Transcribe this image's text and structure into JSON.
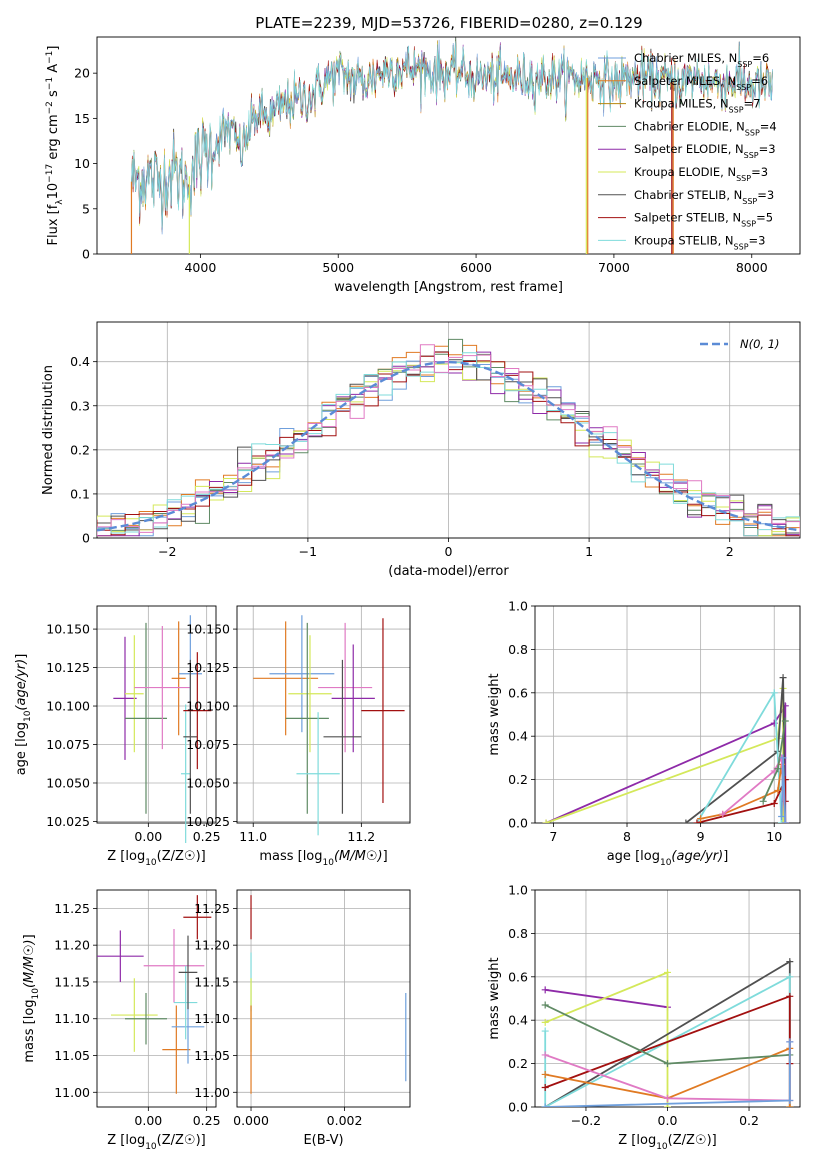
{
  "figure": {
    "title": "PLATE=2239, MJD=53726, FIBERID=0280, z=0.129"
  },
  "colors": {
    "chabrier_miles": "#6f9fdc",
    "salpeter_miles": "#e07a23",
    "kroupa_miles": "#b8860b",
    "chabrier_elodie": "#5f8a64",
    "salpeter_elodie": "#8e2aa8",
    "kroupa_elodie": "#d4e85a",
    "chabrier_stelib": "#505050",
    "salpeter_stelib": "#a21010",
    "kroupa_stelib": "#7fdbdb",
    "pink": "#e07ac4",
    "gaussian": "#5b8bd6",
    "grid": "#b0b0b0"
  },
  "chart_data": [
    {
      "id": "spectrum",
      "type": "line",
      "xlabel": "wavelength [Angstrom, rest frame]",
      "ylabel": "Flux [f_λ10^-17 erg cm^-2 s^-1 A^-1]",
      "xlim": [
        3250,
        8350
      ],
      "ylim": [
        0,
        24
      ],
      "xticks": [
        4000,
        5000,
        6000,
        7000,
        8000
      ],
      "yticks": [
        0,
        5,
        10,
        15,
        20
      ],
      "grid": false,
      "legend_position": "upper-right",
      "legend": [
        {
          "label": "Chabrier MILES, N",
          "sub": "SSP",
          "tail": "=6",
          "color_key": "chabrier_miles"
        },
        {
          "label": "Salpeter MILES, N",
          "sub": "SSP",
          "tail": "=6",
          "color_key": "salpeter_miles"
        },
        {
          "label": "Kroupa MILES, N",
          "sub": "SSP",
          "tail": "=7",
          "color_key": "kroupa_miles"
        },
        {
          "label": "Chabrier ELODIE, N",
          "sub": "SSP",
          "tail": "=4",
          "color_key": "chabrier_elodie"
        },
        {
          "label": "Salpeter ELODIE, N",
          "sub": "SSP",
          "tail": "=3",
          "color_key": "salpeter_elodie"
        },
        {
          "label": "Kroupa ELODIE, N",
          "sub": "SSP",
          "tail": "=3",
          "color_key": "kroupa_elodie"
        },
        {
          "label": "Chabrier STELIB, N",
          "sub": "SSP",
          "tail": "=3",
          "color_key": "chabrier_stelib"
        },
        {
          "label": "Salpeter STELIB, N",
          "sub": "SSP",
          "tail": "=5",
          "color_key": "salpeter_stelib"
        },
        {
          "label": "Kroupa STELIB, N",
          "sub": "SSP",
          "tail": "=3",
          "color_key": "kroupa_stelib"
        }
      ],
      "continuum": {
        "x": [
          3500,
          3600,
          3700,
          3800,
          3900,
          3950,
          4050,
          4100,
          4200,
          4300,
          4400,
          4500,
          4600,
          4700,
          4800,
          4900,
          5000,
          5100,
          5200,
          5300,
          5400,
          5500,
          5600,
          5700,
          5800,
          5900,
          6000,
          6100,
          6200,
          6300,
          6400,
          6500,
          6600,
          6700,
          6800,
          6900,
          7000,
          7100,
          7200,
          7300,
          7400,
          7500,
          7600,
          7700,
          7800,
          7900,
          8000,
          8100
        ],
        "y": [
          8.0,
          8.5,
          8.0,
          9.0,
          8.0,
          9.5,
          11.5,
          12.0,
          14.0,
          11.5,
          15.5,
          15.0,
          16.5,
          17.0,
          17.5,
          19.0,
          20.0,
          19.5,
          19.0,
          20.0,
          20.5,
          20.5,
          20.5,
          20.0,
          20.0,
          20.0,
          19.5,
          19.5,
          19.5,
          19.5,
          19.5,
          19.5,
          19.5,
          19.5,
          19.5,
          19.5,
          19.0,
          19.5,
          19.5,
          19.5,
          19.0,
          19.0,
          19.5,
          19.0,
          19.0,
          19.0,
          18.5,
          18.5
        ]
      },
      "noise": 1.8
    },
    {
      "id": "residuals",
      "type": "histogram",
      "xlabel": "(data-model)/error",
      "ylabel": "Normed distribution",
      "xlim": [
        -2.5,
        2.5
      ],
      "ylim": [
        0,
        0.49
      ],
      "xticks": [
        -2,
        -1,
        0,
        1,
        2
      ],
      "yticks": [
        0.0,
        0.1,
        0.2,
        0.3,
        0.4
      ],
      "grid": true,
      "legend_position": "upper-right",
      "legend_label": "N(0, 1)",
      "bin_width": 0.1
    },
    {
      "id": "age_vs_Z",
      "type": "errorbar",
      "xlabel": "Z [log10(Z/Z☉)]",
      "ylabel": "age [log10(age/yr)]",
      "xlim": [
        -0.22,
        0.29
      ],
      "ylim": [
        10.024,
        10.165
      ],
      "xticks": [
        0.0,
        0.25
      ],
      "xtick_labels": [
        "0.00",
        "0.25"
      ],
      "yticks": [
        10.025,
        10.05,
        10.075,
        10.1,
        10.125,
        10.15
      ],
      "ytick_labels": [
        "10.025",
        "10.050",
        "10.075",
        "10.100",
        "10.125",
        "10.150"
      ],
      "grid": true,
      "points": [
        {
          "color_key": "salpeter_elodie",
          "x": -0.1,
          "xerr": 0.05,
          "y": 10.105,
          "yerr": 0.04
        },
        {
          "color_key": "kroupa_elodie",
          "x": -0.06,
          "xerr": 0.04,
          "y": 10.108,
          "yerr": 0.038
        },
        {
          "color_key": "chabrier_elodie",
          "x": -0.01,
          "xerr": 0.09,
          "y": 10.092,
          "yerr": 0.062
        },
        {
          "color_key": "salpeter_miles",
          "x": 0.13,
          "xerr": 0.03,
          "y": 10.118,
          "yerr": 0.037
        },
        {
          "color_key": "pink",
          "x": 0.06,
          "xerr": 0.12,
          "y": 10.112,
          "yerr": 0.04
        },
        {
          "color_key": "chabrier_miles",
          "x": 0.18,
          "xerr": 0.05,
          "y": 10.121,
          "yerr": 0.038
        },
        {
          "color_key": "kroupa_stelib",
          "x": 0.16,
          "xerr": 0.02,
          "y": 10.056,
          "yerr": 0.045
        },
        {
          "color_key": "chabrier_stelib",
          "x": 0.18,
          "xerr": 0.03,
          "y": 10.08,
          "yerr": 0.05
        },
        {
          "color_key": "salpeter_stelib",
          "x": 0.21,
          "xerr": 0.06,
          "y": 10.097,
          "yerr": 0.038
        }
      ]
    },
    {
      "id": "age_vs_mass",
      "type": "errorbar",
      "xlabel": "mass [log10(M/M☉)]",
      "ylabel": "",
      "xlim": [
        10.97,
        11.29
      ],
      "ylim": [
        10.024,
        10.165
      ],
      "xticks": [
        11.0,
        11.2
      ],
      "xtick_labels": [
        "11.0",
        "11.2"
      ],
      "yticks": [
        10.025,
        10.05,
        10.075,
        10.1,
        10.125,
        10.15
      ],
      "ytick_labels": [
        "10.025",
        "10.050",
        "10.075",
        "10.100",
        "10.125",
        "10.150"
      ],
      "grid": true,
      "points": [
        {
          "color_key": "salpeter_miles",
          "x": 11.06,
          "xerr": 0.06,
          "y": 10.118,
          "yerr": 0.037
        },
        {
          "color_key": "chabrier_miles",
          "x": 11.09,
          "xerr": 0.06,
          "y": 10.121,
          "yerr": 0.038
        },
        {
          "color_key": "kroupa_elodie",
          "x": 11.105,
          "xerr": 0.04,
          "y": 10.108,
          "yerr": 0.038
        },
        {
          "color_key": "chabrier_elodie",
          "x": 11.1,
          "xerr": 0.04,
          "y": 10.092,
          "yerr": 0.062
        },
        {
          "color_key": "kroupa_stelib",
          "x": 11.12,
          "xerr": 0.04,
          "y": 10.056,
          "yerr": 0.04
        },
        {
          "color_key": "pink",
          "x": 11.17,
          "xerr": 0.05,
          "y": 10.112,
          "yerr": 0.042
        },
        {
          "color_key": "salpeter_elodie",
          "x": 11.185,
          "xerr": 0.04,
          "y": 10.105,
          "yerr": 0.035
        },
        {
          "color_key": "chabrier_stelib",
          "x": 11.165,
          "xerr": 0.035,
          "y": 10.08,
          "yerr": 0.05
        },
        {
          "color_key": "salpeter_stelib",
          "x": 11.24,
          "xerr": 0.04,
          "y": 10.097,
          "yerr": 0.06
        }
      ]
    },
    {
      "id": "weight_vs_age",
      "type": "line",
      "xlabel": "age [log10(age/yr)]",
      "ylabel": "mass weight",
      "xlim": [
        6.75,
        10.35
      ],
      "ylim": [
        0,
        1
      ],
      "xticks": [
        7,
        8,
        9,
        10
      ],
      "yticks": [
        0,
        0.2,
        0.4,
        0.6,
        0.8,
        1.0
      ],
      "ytick_labels": [
        "0.0",
        "0.2",
        "0.4",
        "0.6",
        "0.8",
        "1.0"
      ],
      "grid": true,
      "series": [
        {
          "color_key": "salpeter_elodie",
          "x": [
            6.9,
            10.0,
            10.15,
            10.15
          ],
          "y": [
            0.0,
            0.46,
            0.54,
            0.0
          ]
        },
        {
          "color_key": "kroupa_elodie",
          "x": [
            6.9,
            10.05,
            10.12,
            10.12
          ],
          "y": [
            0.0,
            0.39,
            0.62,
            0.0
          ]
        },
        {
          "color_key": "chabrier_stelib",
          "x": [
            8.8,
            10.05,
            10.12,
            10.15
          ],
          "y": [
            0.0,
            0.33,
            0.67,
            0.0
          ]
        },
        {
          "color_key": "kroupa_stelib",
          "x": [
            8.95,
            10.0,
            10.1,
            10.1
          ],
          "y": [
            0.0,
            0.6,
            0.0,
            0.0
          ]
        },
        {
          "color_key": "salpeter_stelib",
          "x": [
            8.95,
            10.0,
            10.15,
            10.15
          ],
          "y": [
            0.0,
            0.09,
            0.2,
            0.1
          ]
        },
        {
          "color_key": "salpeter_miles",
          "x": [
            9.0,
            9.3,
            10.05,
            10.1,
            10.15
          ],
          "y": [
            0.02,
            0.04,
            0.15,
            0.27,
            0.0
          ]
        },
        {
          "color_key": "pink",
          "x": [
            9.3,
            10.0,
            10.1,
            10.15,
            10.15
          ],
          "y": [
            0.04,
            0.24,
            0.3,
            0.0,
            0.0
          ]
        },
        {
          "color_key": "chabrier_elodie",
          "x": [
            9.85,
            10.05,
            10.15
          ],
          "y": [
            0.1,
            0.25,
            0.47
          ]
        },
        {
          "color_key": "chabrier_miles",
          "x": [
            10.1,
            10.12,
            10.15
          ],
          "y": [
            0.03,
            0.3,
            0.0
          ]
        }
      ]
    },
    {
      "id": "mass_vs_Z",
      "type": "errorbar",
      "xlabel": "Z [log10(Z/Z☉)]",
      "ylabel": "mass [log10(M/M☉)]",
      "xlim": [
        -0.22,
        0.29
      ],
      "ylim": [
        10.98,
        11.275
      ],
      "xticks": [
        0.0,
        0.25
      ],
      "xtick_labels": [
        "0.00",
        "0.25"
      ],
      "yticks": [
        11.0,
        11.05,
        11.1,
        11.15,
        11.2,
        11.25
      ],
      "ytick_labels": [
        "11.00",
        "11.05",
        "11.10",
        "11.15",
        "11.20",
        "11.25"
      ],
      "grid": true,
      "points": [
        {
          "color_key": "salpeter_elodie",
          "x": -0.12,
          "xerr": 0.1,
          "y": 11.185,
          "yerr": 0.035
        },
        {
          "color_key": "kroupa_elodie",
          "x": -0.06,
          "xerr": 0.1,
          "y": 11.105,
          "yerr": 0.05
        },
        {
          "color_key": "chabrier_elodie",
          "x": -0.01,
          "xerr": 0.09,
          "y": 11.1,
          "yerr": 0.035
        },
        {
          "color_key": "pink",
          "x": 0.11,
          "xerr": 0.13,
          "y": 11.172,
          "yerr": 0.05
        },
        {
          "color_key": "salpeter_miles",
          "x": 0.12,
          "xerr": 0.06,
          "y": 11.058,
          "yerr": 0.06
        },
        {
          "color_key": "chabrier_miles",
          "x": 0.17,
          "xerr": 0.07,
          "y": 11.089,
          "yerr": 0.05
        },
        {
          "color_key": "kroupa_stelib",
          "x": 0.16,
          "xerr": 0.05,
          "y": 11.122,
          "yerr": 0.05
        },
        {
          "color_key": "chabrier_stelib",
          "x": 0.17,
          "xerr": 0.04,
          "y": 11.163,
          "yerr": 0.05
        },
        {
          "color_key": "salpeter_stelib",
          "x": 0.21,
          "xerr": 0.06,
          "y": 11.238,
          "yerr": 0.03
        }
      ]
    },
    {
      "id": "mass_vs_ebv",
      "type": "errorbar",
      "xlabel": "E(B-V)",
      "ylabel": "",
      "xlim": [
        -0.0003,
        0.0034
      ],
      "ylim": [
        10.98,
        11.275
      ],
      "xticks": [
        0.0,
        0.002
      ],
      "xtick_labels": [
        "0.000",
        "0.002"
      ],
      "yticks": [
        11.0,
        11.05,
        11.1,
        11.15,
        11.2,
        11.25
      ],
      "ytick_labels": [
        "11.00",
        "11.05",
        "11.10",
        "11.15",
        "11.20",
        "11.25"
      ],
      "grid": true,
      "points": [
        {
          "color_key": "salpeter_stelib",
          "x": 0.0,
          "xerr": 0.0,
          "y": 11.238,
          "yerr": 0.03
        },
        {
          "color_key": "kroupa_stelib",
          "x": 0.0,
          "xerr": 0.0,
          "y": 11.15,
          "yerr": 0.04
        },
        {
          "color_key": "kroupa_elodie",
          "x": 0.0,
          "xerr": 0.0,
          "y": 11.105,
          "yerr": 0.05
        },
        {
          "color_key": "salpeter_miles",
          "x": 0.0,
          "xerr": 0.0,
          "y": 11.058,
          "yerr": 0.06
        },
        {
          "color_key": "chabrier_miles",
          "x": 0.00331,
          "xerr": 0.0,
          "y": 11.075,
          "yerr": 0.06
        }
      ]
    },
    {
      "id": "weight_vs_Z",
      "type": "line",
      "xlabel": "Z [log10(Z/Z☉)]",
      "ylabel": "mass weight",
      "xlim": [
        -0.325,
        0.325
      ],
      "ylim": [
        0,
        1
      ],
      "xticks": [
        -0.2,
        0.0,
        0.2
      ],
      "xtick_labels": [
        "−0.2",
        "0.0",
        "0.2"
      ],
      "yticks": [
        0,
        0.2,
        0.4,
        0.6,
        0.8,
        1.0
      ],
      "ytick_labels": [
        "0.0",
        "0.2",
        "0.4",
        "0.6",
        "0.8",
        "1.0"
      ],
      "grid": true,
      "series": [
        {
          "color_key": "salpeter_elodie",
          "x": [
            -0.3,
            0.0
          ],
          "y": [
            0.54,
            0.46
          ]
        },
        {
          "color_key": "kroupa_elodie",
          "x": [
            -0.3,
            0.0,
            0.0
          ],
          "y": [
            0.39,
            0.62,
            0.0
          ]
        },
        {
          "color_key": "chabrier_stelib",
          "x": [
            -0.3,
            0.3,
            0.3
          ],
          "y": [
            0.0,
            0.67,
            0.0
          ]
        },
        {
          "color_key": "kroupa_stelib",
          "x": [
            -0.3,
            -0.3,
            0.3,
            0.3
          ],
          "y": [
            0.35,
            0.0,
            0.6,
            0.0
          ]
        },
        {
          "color_key": "salpeter_stelib",
          "x": [
            -0.3,
            0.3,
            0.3
          ],
          "y": [
            0.09,
            0.51,
            0.2
          ]
        },
        {
          "color_key": "salpeter_miles",
          "x": [
            -0.3,
            0.0,
            0.3,
            0.3
          ],
          "y": [
            0.15,
            0.04,
            0.27,
            0.0
          ]
        },
        {
          "color_key": "pink",
          "x": [
            -0.3,
            0.0,
            0.3,
            0.3
          ],
          "y": [
            0.24,
            0.04,
            0.03,
            0.3
          ]
        },
        {
          "color_key": "chabrier_elodie",
          "x": [
            -0.3,
            0.0,
            0.3
          ],
          "y": [
            0.47,
            0.2,
            0.24
          ]
        },
        {
          "color_key": "chabrier_miles",
          "x": [
            -0.3,
            0.3,
            0.3
          ],
          "y": [
            0.0,
            0.03,
            0.3
          ]
        }
      ]
    }
  ]
}
